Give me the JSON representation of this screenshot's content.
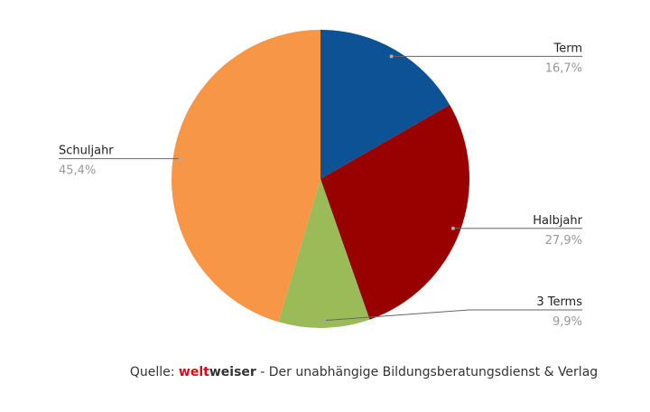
{
  "chart_data": {
    "type": "pie",
    "categories": [
      "Term",
      "Halbjahr",
      "3 Terms",
      "Schuljahr"
    ],
    "values": [
      16.7,
      27.9,
      9.9,
      45.4
    ],
    "value_labels": [
      "16,7%",
      "27,9%",
      "9,9%",
      "45,4%"
    ],
    "colors": [
      "#0d5295",
      "#990000",
      "#9bbb59",
      "#f79646"
    ]
  },
  "footer": {
    "prefix": "Quelle: ",
    "brand_red": "welt",
    "brand_dark": "weiser",
    "suffix": " - Der unabhängige Bildungsberatungsdienst & Verlag"
  }
}
